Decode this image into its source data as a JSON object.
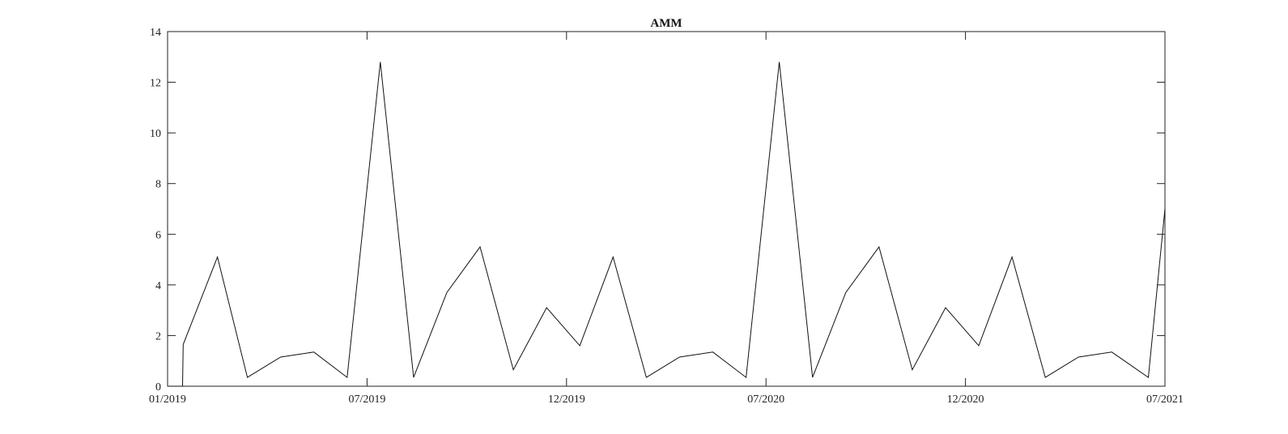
{
  "chart_data": {
    "type": "line",
    "title": "AMM",
    "xlabel": "",
    "ylabel": "",
    "x_tick_labels": [
      "01/2019",
      "07/2019",
      "12/2019",
      "07/2020",
      "12/2020",
      "07/2021"
    ],
    "x_tick_months": [
      0,
      6,
      12,
      18,
      24,
      30
    ],
    "x_range_months": [
      0,
      30
    ],
    "y_ticks": [
      0,
      2,
      4,
      6,
      8,
      10,
      12,
      14
    ],
    "ylim": [
      0,
      14
    ],
    "grid": false,
    "series": [
      {
        "x_month": [
          0.0,
          0.45,
          0.47,
          1.5,
          2.4,
          3.4,
          4.4,
          5.4,
          6.4,
          7.4,
          8.4,
          9.4,
          10.4,
          11.4,
          12.4,
          13.4,
          14.4,
          15.4,
          16.4,
          17.4,
          18.4,
          19.4,
          20.4,
          21.4,
          22.4,
          23.4,
          24.4,
          25.4,
          26.4,
          27.4,
          28.4,
          29.5,
          30.0
        ],
        "y": [
          0.0,
          0.0,
          1.65,
          5.1,
          0.35,
          1.15,
          1.35,
          0.35,
          12.8,
          0.35,
          3.7,
          5.5,
          0.65,
          3.1,
          1.6,
          5.1,
          0.35,
          1.15,
          1.35,
          0.35,
          12.8,
          0.35,
          3.7,
          5.5,
          0.65,
          3.1,
          1.6,
          5.1,
          0.35,
          1.15,
          1.35,
          0.35,
          7.0
        ]
      }
    ]
  }
}
